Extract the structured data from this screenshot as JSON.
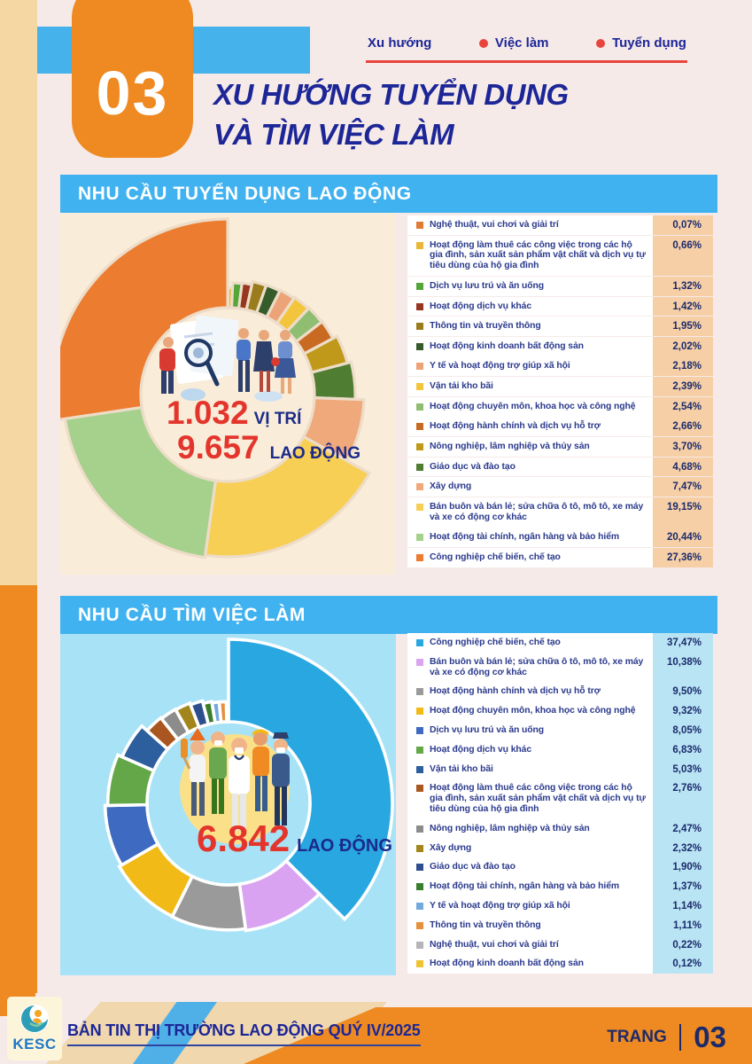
{
  "page": {
    "number_badge": "03",
    "title_line1": "XU HƯỚNG TUYỂN DỤNG",
    "title_line2": "VÀ TÌM VIỆC LÀM"
  },
  "tabs": {
    "tab1": "Xu hướng",
    "tab2": "Việc làm",
    "tab3": "Tuyển dụng"
  },
  "section1": {
    "banner": "NHU CẦU TUYỂN DỤNG LAO ĐỘNG",
    "center_value1": "1.032",
    "center_label1": "VỊ TRÍ",
    "center_value2": "9.657",
    "center_label2": "LAO ĐỘNG"
  },
  "section2": {
    "banner": "NHU CẦU TÌM VIỆC LÀM",
    "center_value1": "6.842",
    "center_label1": "LAO ĐỘNG"
  },
  "footer": {
    "logo": "KESC",
    "title": "BẢN TIN THỊ TRƯỜNG LAO ĐỘNG QUÝ IV/2025",
    "page_label": "TRANG",
    "page_number": "03"
  },
  "chart_data": [
    {
      "type": "rose-donut",
      "title": "NHU CẦU TUYỂN DỤNG LAO ĐỘNG",
      "unit": "%",
      "order": "ascending, clockwise from top",
      "totals": {
        "positions": "1.032 VỊ TRÍ",
        "workers": "9.657 LAO ĐỘNG"
      },
      "series": [
        {
          "label": "Nghệ thuật, vui chơi và giải trí",
          "value": 0.07,
          "display": "0,07%",
          "color": "#e07b35"
        },
        {
          "label": "Hoạt động làm thuê các công việc trong các hộ gia đình, sản xuất sản phẩm vật chất và dịch vụ tự tiêu dùng của hộ gia đình",
          "value": 0.66,
          "display": "0,66%",
          "color": "#eab734"
        },
        {
          "label": "Dịch vụ lưu trú và ăn uống",
          "value": 1.32,
          "display": "1,32%",
          "color": "#55a63a"
        },
        {
          "label": "Hoạt động dịch vụ khác",
          "value": 1.42,
          "display": "1,42%",
          "color": "#97371f"
        },
        {
          "label": "Thông tin và truyền thông",
          "value": 1.95,
          "display": "1,95%",
          "color": "#9b7c1c"
        },
        {
          "label": "Hoạt động kinh doanh bất động sản",
          "value": 2.02,
          "display": "2,02%",
          "color": "#375c2b"
        },
        {
          "label": "Y tế và hoạt động trợ giúp xã hội",
          "value": 2.18,
          "display": "2,18%",
          "color": "#eca377"
        },
        {
          "label": "Vận tải kho bãi",
          "value": 2.39,
          "display": "2,39%",
          "color": "#f3c53d"
        },
        {
          "label": "Hoạt động chuyên môn, khoa học và công nghệ",
          "value": 2.54,
          "display": "2,54%",
          "color": "#8fbe72"
        },
        {
          "label": "Hoạt động hành chính và dịch vụ hỗ trợ",
          "value": 2.66,
          "display": "2,66%",
          "color": "#c96a22"
        },
        {
          "label": "Nông nghiệp, lâm nghiệp và thủy sản",
          "value": 3.7,
          "display": "3,70%",
          "color": "#c0991a"
        },
        {
          "label": "Giáo dục và đào tạo",
          "value": 4.68,
          "display": "4,68%",
          "color": "#4f7d32"
        },
        {
          "label": "Xây dựng",
          "value": 7.47,
          "display": "7,47%",
          "color": "#f0a97a"
        },
        {
          "label": "Bán buôn và bán lẻ; sửa chữa ô tô, mô tô, xe máy và xe có động cơ khác",
          "value": 19.15,
          "display": "19,15%",
          "color": "#f8cf55"
        },
        {
          "label": "Hoạt động tài chính, ngân hàng và bảo hiểm",
          "value": 20.44,
          "display": "20,44%",
          "color": "#a5d18d"
        },
        {
          "label": "Công nghiệp chế biến, chế tạo",
          "value": 27.36,
          "display": "27,36%",
          "color": "#ec7c2f"
        }
      ]
    },
    {
      "type": "rose-donut",
      "title": "NHU CẦU TÌM VIỆC LÀM",
      "unit": "%",
      "order": "descending, clockwise from top",
      "totals": {
        "workers": "6.842 LAO ĐỘNG"
      },
      "series": [
        {
          "label": "Công nghiệp chế biến, chế tạo",
          "value": 37.47,
          "display": "37,47%",
          "color": "#29a7e1"
        },
        {
          "label": "Bán buôn và bán lẻ; sửa chữa ô tô, mô tô, xe máy và xe có động cơ khác",
          "value": 10.38,
          "display": "10,38%",
          "color": "#d9a3f1"
        },
        {
          "label": "Hoạt động hành chính và dịch vụ hỗ trợ",
          "value": 9.5,
          "display": "9,50%",
          "color": "#9a9a9a"
        },
        {
          "label": "Hoạt động chuyên môn, khoa học và công nghệ",
          "value": 9.32,
          "display": "9,32%",
          "color": "#f2ba17"
        },
        {
          "label": "Dịch vụ lưu trú và ăn uống",
          "value": 8.05,
          "display": "8,05%",
          "color": "#3f6ac2"
        },
        {
          "label": "Hoạt động dịch vụ khác",
          "value": 6.83,
          "display": "6,83%",
          "color": "#63a748"
        },
        {
          "label": "Vận tải kho bãi",
          "value": 5.03,
          "display": "5,03%",
          "color": "#2d5e9e"
        },
        {
          "label": "Hoạt động làm thuê các công việc trong các hộ gia đình, sản xuất sản phẩm vật chất và dịch vụ tự tiêu dùng của hộ gia đình",
          "value": 2.76,
          "display": "2,76%",
          "color": "#aa5620"
        },
        {
          "label": "Nông nghiệp, lâm nghiệp và thủy sản",
          "value": 2.47,
          "display": "2,47%",
          "color": "#8c8c8c"
        },
        {
          "label": "Xây dựng",
          "value": 2.32,
          "display": "2,32%",
          "color": "#a3861b"
        },
        {
          "label": "Giáo dục và đào tạo",
          "value": 1.9,
          "display": "1,90%",
          "color": "#2d4f8e"
        },
        {
          "label": "Hoạt động tài chính, ngân hàng và bảo hiểm",
          "value": 1.37,
          "display": "1,37%",
          "color": "#3a7d2c"
        },
        {
          "label": "Y tế và hoạt động trợ giúp xã hội",
          "value": 1.14,
          "display": "1,14%",
          "color": "#74a9dc"
        },
        {
          "label": "Thông tin và truyền thông",
          "value": 1.11,
          "display": "1,11%",
          "color": "#e6913c"
        },
        {
          "label": "Nghệ thuật, vui chơi và giải trí",
          "value": 0.22,
          "display": "0,22%",
          "color": "#b5b5b5"
        },
        {
          "label": "Hoạt động kinh doanh bất động sản",
          "value": 0.12,
          "display": "0,12%",
          "color": "#f1c232"
        }
      ]
    }
  ]
}
